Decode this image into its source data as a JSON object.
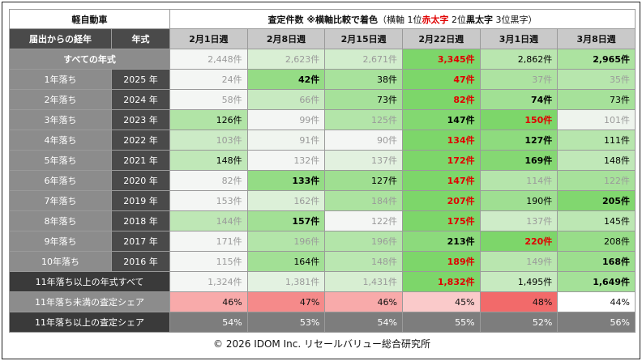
{
  "chart_data": {
    "type": "table",
    "title": "軽自動車",
    "caption_main": "査定件数",
    "caption_note": "※横軸比較で着色",
    "caption_legend_open": "（横軸 1位",
    "caption_legend_red": "赤太字",
    "caption_legend_mid": " 2位",
    "caption_legend_bold": "黒太字",
    "caption_legend_close": " 3位黒字）",
    "header_age": "届出からの経年",
    "header_year": "年式",
    "weeks": [
      "2月1日週",
      "2月8日週",
      "2月15日週",
      "2月22日週",
      "3月1日週",
      "3月8日週"
    ],
    "all_row": {
      "label": "すべての年式",
      "values": [
        2448,
        2623,
        2671,
        3345,
        2862,
        2965
      ]
    },
    "rows": [
      {
        "age": "1年落ち",
        "year": "2025 年",
        "values": [
          24,
          42,
          38,
          47,
          37,
          35
        ]
      },
      {
        "age": "2年落ち",
        "year": "2024 年",
        "values": [
          58,
          66,
          73,
          82,
          74,
          73
        ]
      },
      {
        "age": "3年落ち",
        "year": "2023 年",
        "values": [
          126,
          99,
          125,
          147,
          150,
          101
        ]
      },
      {
        "age": "4年落ち",
        "year": "2022 年",
        "values": [
          103,
          91,
          90,
          134,
          127,
          111
        ]
      },
      {
        "age": "5年落ち",
        "year": "2021 年",
        "values": [
          148,
          132,
          137,
          172,
          169,
          148
        ]
      },
      {
        "age": "6年落ち",
        "year": "2020 年",
        "values": [
          82,
          133,
          127,
          147,
          114,
          122
        ]
      },
      {
        "age": "7年落ち",
        "year": "2019 年",
        "values": [
          153,
          162,
          184,
          207,
          190,
          205
        ]
      },
      {
        "age": "8年落ち",
        "year": "2018 年",
        "values": [
          144,
          157,
          122,
          175,
          137,
          145
        ]
      },
      {
        "age": "9年落ち",
        "year": "2017 年",
        "values": [
          171,
          196,
          196,
          213,
          220,
          208
        ]
      },
      {
        "age": "10年落ち",
        "year": "2016 年",
        "values": [
          115,
          164,
          148,
          189,
          149,
          168
        ]
      }
    ],
    "old_row": {
      "label": "11年落ち以上の年式すべて",
      "values": [
        1324,
        1381,
        1431,
        1832,
        1495,
        1649
      ]
    },
    "share_new": {
      "label": "11年落ち未満の査定シェア",
      "values": [
        "46%",
        "47%",
        "46%",
        "45%",
        "48%",
        "44%"
      ],
      "level": [
        0.46,
        0.47,
        0.46,
        0.45,
        0.48,
        0.44
      ]
    },
    "share_old": {
      "label": "11年落ち以上の査定シェア",
      "values": [
        "54%",
        "53%",
        "54%",
        "55%",
        "52%",
        "56%"
      ]
    },
    "unit": "件",
    "colors": {
      "rank1_text": "#e00000",
      "green_high": "#7dd66a",
      "green_low": "#f4f6f4",
      "red_high": "#f26a6a",
      "red_low": "#fdeaea"
    }
  },
  "footer": {
    "copyright": "© 2026 IDOM Inc. リセールバリュー総合研究所"
  }
}
